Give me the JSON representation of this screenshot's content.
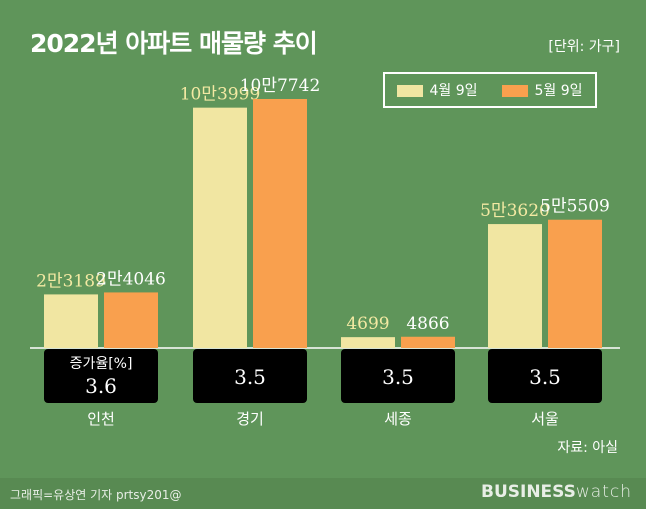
{
  "title": "2022년 아파트 매물량 추이",
  "unit": "[단위: 가구]",
  "source": "자료: 아실",
  "credit": "그래픽=유상연 기자 prtsy201@",
  "logo": {
    "bold": "BUSINESS",
    "light": "watch"
  },
  "chart_data": {
    "type": "bar",
    "title": "2022년 아파트 매물량 추이",
    "categories": [
      "인천",
      "경기",
      "세종",
      "서울"
    ],
    "series": [
      {
        "name": "4월 9일",
        "values": [
          23189,
          103999,
          4699,
          53620
        ],
        "labels": [
          "2만3189",
          "10만3999",
          "4699",
          "5만3620"
        ],
        "color": "#f1e6a2"
      },
      {
        "name": "5월 9일",
        "values": [
          24046,
          107742,
          4866,
          55509
        ],
        "labels": [
          "2만4046",
          "10만7742",
          "4866",
          "5만5509"
        ],
        "color": "#f9a04e"
      }
    ],
    "rate_label": "증가율[%]",
    "rates": [
      "3.6",
      "3.5",
      "3.5",
      "3.5"
    ],
    "legend": "top-right",
    "grid": false
  }
}
